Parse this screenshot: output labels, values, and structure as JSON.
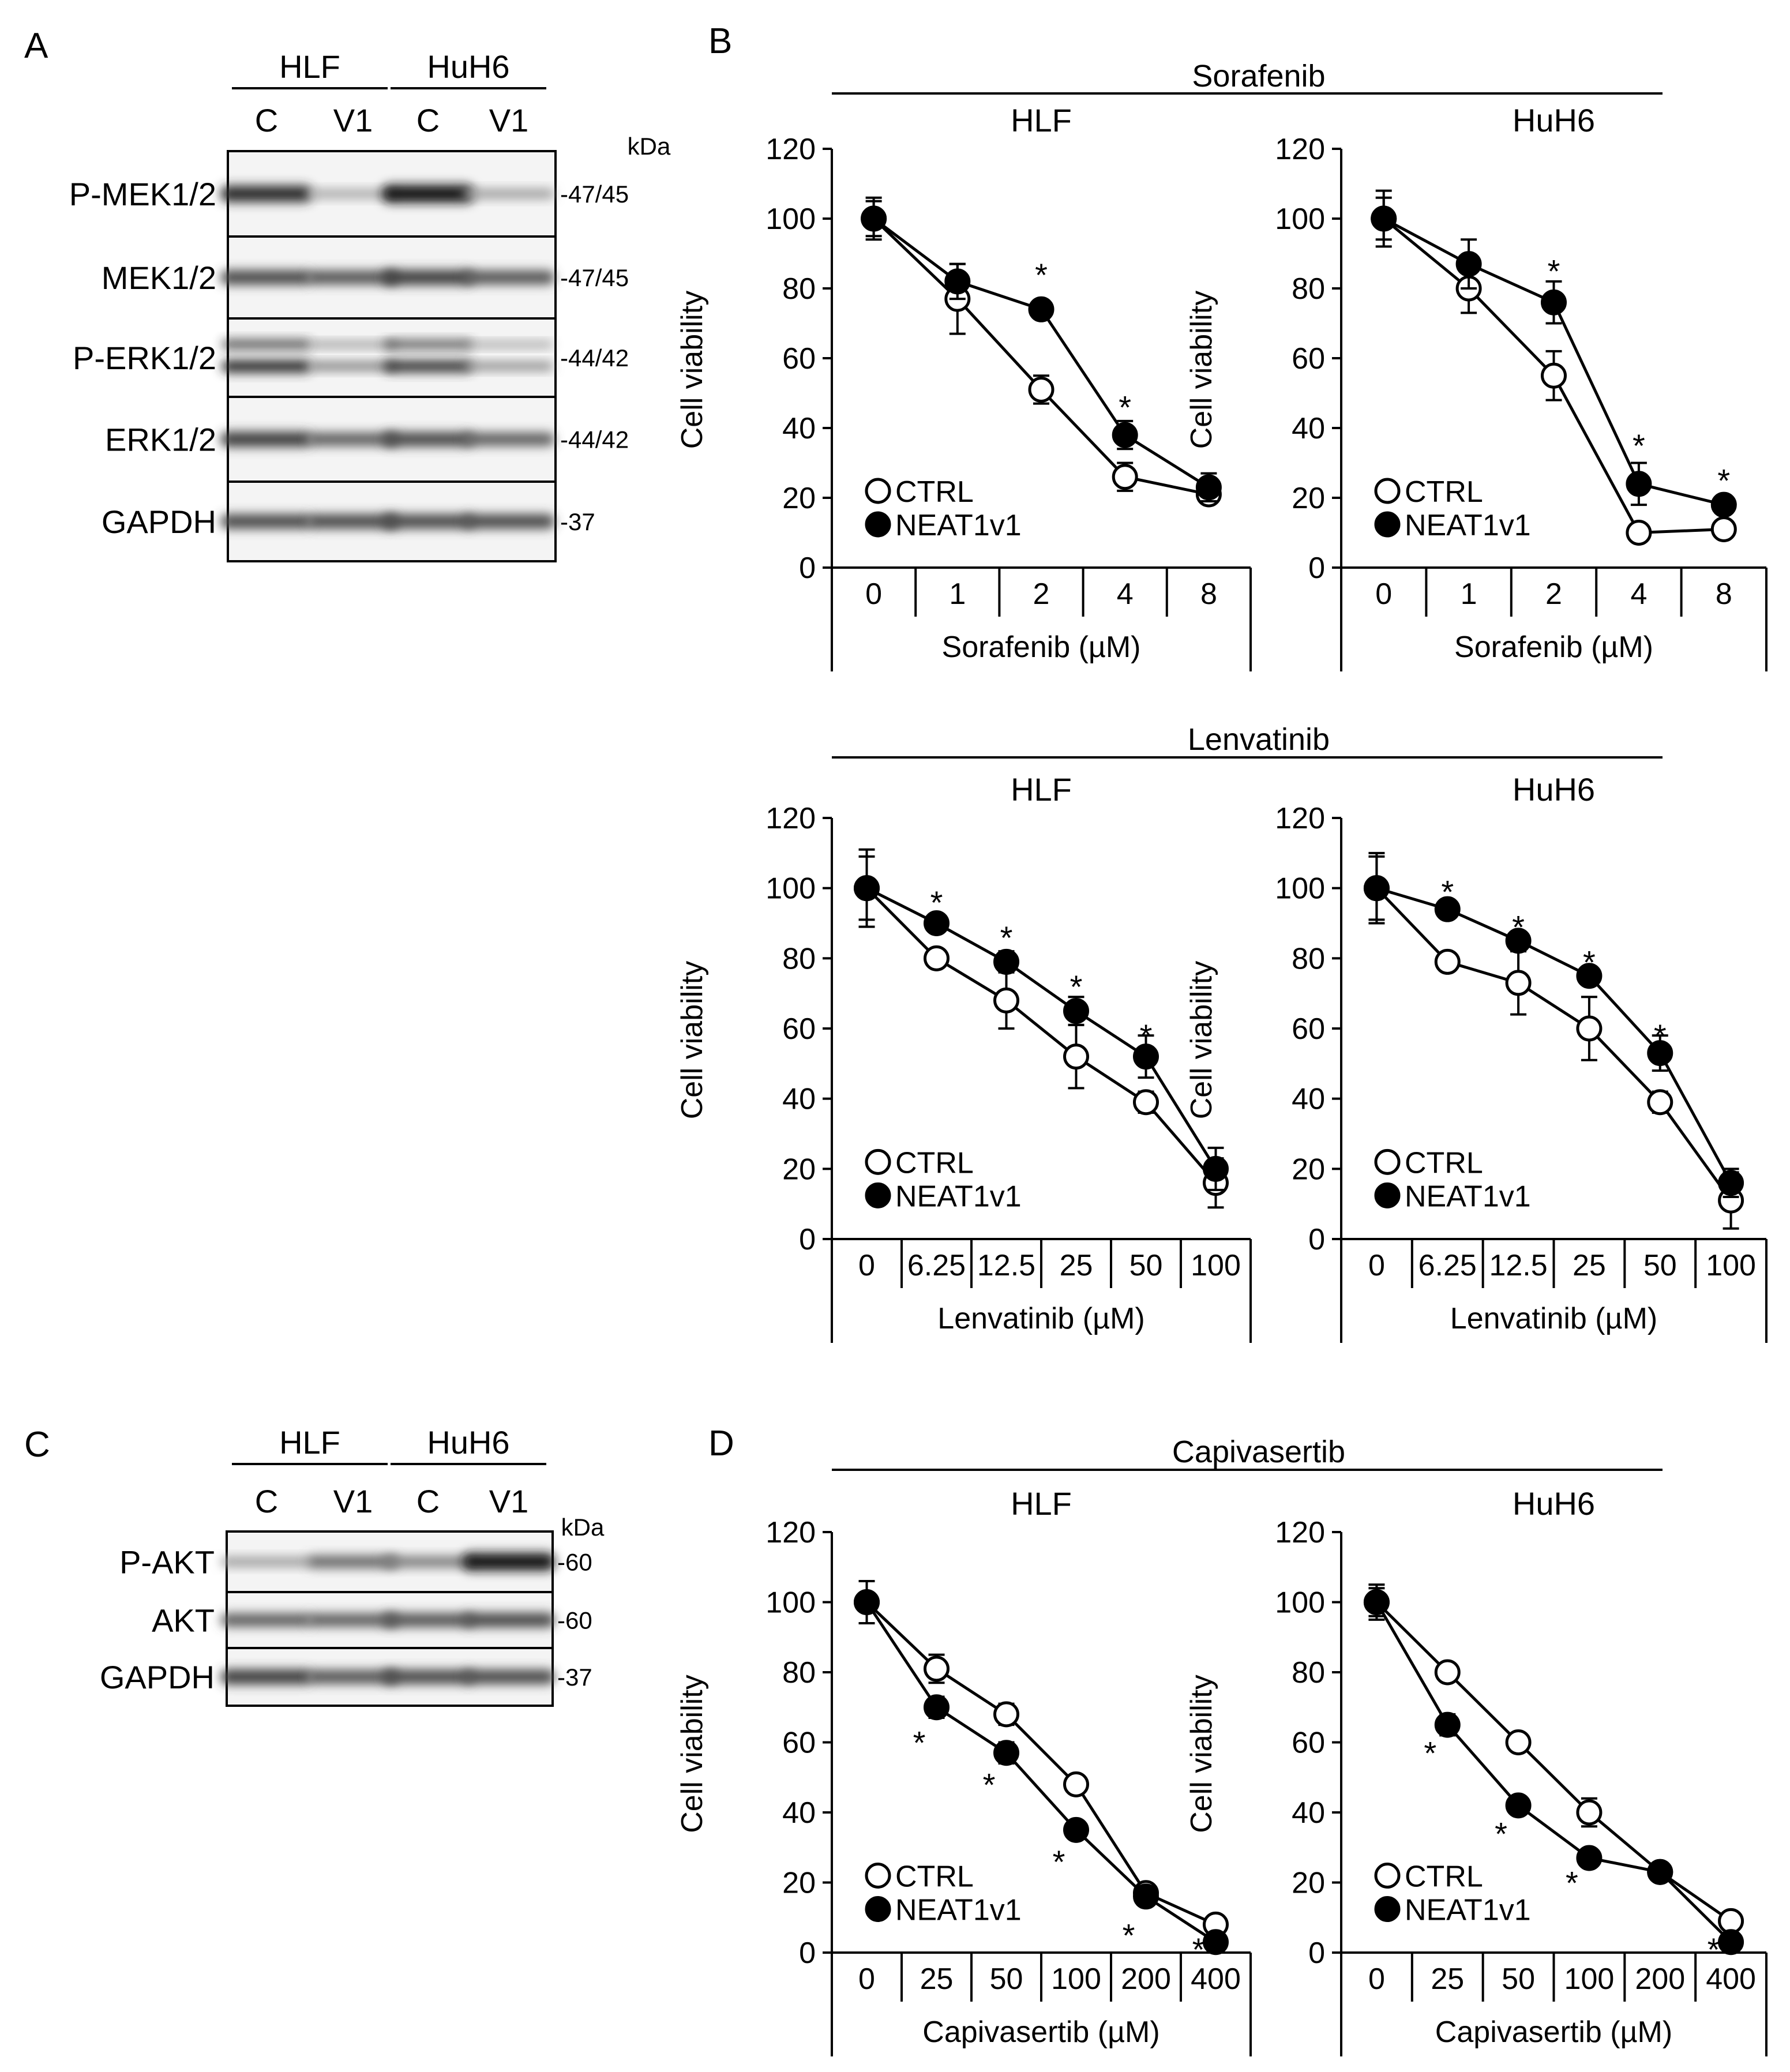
{
  "panels": {
    "A": {
      "letter": "A",
      "groups": [
        "HLF",
        "HuH6"
      ],
      "lanes": [
        "C",
        "V1",
        "C",
        "V1"
      ],
      "kda_label": "kDa",
      "blots": [
        {
          "name": "P-MEK1/2",
          "kda": "47/45",
          "bands": [
            0.85,
            0.25,
            0.95,
            0.3
          ],
          "double": false
        },
        {
          "name": "MEK1/2",
          "kda": "47/45",
          "bands": [
            0.7,
            0.65,
            0.75,
            0.65
          ],
          "double": false
        },
        {
          "name": "P-ERK1/2",
          "kda": "44/42",
          "bands": [
            0.85,
            0.45,
            0.8,
            0.4
          ],
          "double": true
        },
        {
          "name": "ERK1/2",
          "kda": "44/42",
          "bands": [
            0.75,
            0.6,
            0.7,
            0.6
          ],
          "double": false
        },
        {
          "name": "GAPDH",
          "kda": "37",
          "bands": [
            0.7,
            0.7,
            0.7,
            0.7
          ],
          "double": false
        }
      ]
    },
    "B": {
      "letter": "B"
    },
    "C": {
      "letter": "C",
      "groups": [
        "HLF",
        "HuH6"
      ],
      "lanes": [
        "C",
        "V1",
        "C",
        "V1"
      ],
      "kda_label": "kDa",
      "blots": [
        {
          "name": "P-AKT",
          "kda": "60",
          "bands": [
            0.3,
            0.55,
            0.45,
            0.95
          ],
          "double": false
        },
        {
          "name": "AKT",
          "kda": "60",
          "bands": [
            0.6,
            0.6,
            0.65,
            0.7
          ],
          "double": false
        },
        {
          "name": "GAPDH",
          "kda": "37",
          "bands": [
            0.75,
            0.65,
            0.7,
            0.7
          ],
          "double": false
        }
      ]
    },
    "D": {
      "letter": "D"
    }
  },
  "drug_groups": [
    "Sorafenib",
    "Lenvatinib",
    "Capivasertib"
  ],
  "chart_data": [
    {
      "type": "line",
      "drug": "Sorafenib",
      "title": "HLF",
      "ylabel": "Cell viability",
      "xlabel": "Sorafenib (µM)",
      "categories": [
        "0",
        "1",
        "2",
        "4",
        "8"
      ],
      "ylim": [
        0,
        120
      ],
      "yticks": [
        0,
        20,
        40,
        60,
        80,
        100,
        120
      ],
      "legend": [
        "CTRL",
        "NEAT1v1"
      ],
      "legend_position": "bottom-left",
      "series": [
        {
          "name": "CTRL",
          "values": [
            100,
            77,
            51,
            26,
            21
          ],
          "errors": [
            5,
            10,
            4,
            4,
            2
          ]
        },
        {
          "name": "NEAT1v1",
          "values": [
            100,
            82,
            74,
            38,
            23
          ],
          "errors": [
            6,
            5,
            2,
            4,
            4
          ]
        }
      ],
      "significance": [
        {
          "index": 2,
          "label": "*",
          "y": 85
        },
        {
          "index": 3,
          "label": "*",
          "y": 47
        }
      ]
    },
    {
      "type": "line",
      "drug": "Sorafenib",
      "title": "HuH6",
      "ylabel": "Cell viability",
      "xlabel": "Sorafenib (µM)",
      "categories": [
        "0",
        "1",
        "2",
        "4",
        "8"
      ],
      "ylim": [
        0,
        120
      ],
      "yticks": [
        0,
        20,
        40,
        60,
        80,
        100,
        120
      ],
      "legend": [
        "CTRL",
        "NEAT1v1"
      ],
      "legend_position": "bottom-left",
      "series": [
        {
          "name": "CTRL",
          "values": [
            100,
            80,
            55,
            10,
            11
          ],
          "errors": [
            8,
            7,
            7,
            1,
            1
          ]
        },
        {
          "name": "NEAT1v1",
          "values": [
            100,
            87,
            76,
            24,
            18
          ],
          "errors": [
            6,
            7,
            6,
            6,
            2
          ]
        }
      ],
      "significance": [
        {
          "index": 2,
          "label": "*",
          "y": 86
        },
        {
          "index": 3,
          "label": "*",
          "y": 36
        },
        {
          "index": 4,
          "label": "*",
          "y": 26
        }
      ]
    },
    {
      "type": "line",
      "drug": "Lenvatinib",
      "title": "HLF",
      "ylabel": "Cell viability",
      "xlabel": "Lenvatinib (µM)",
      "categories": [
        "0",
        "6.25",
        "12.5",
        "25",
        "50",
        "100"
      ],
      "ylim": [
        0,
        120
      ],
      "yticks": [
        0,
        20,
        40,
        60,
        80,
        100,
        120
      ],
      "legend": [
        "CTRL",
        "NEAT1v1"
      ],
      "legend_position": "bottom-left",
      "series": [
        {
          "name": "CTRL",
          "values": [
            100,
            80,
            68,
            52,
            39,
            16
          ],
          "errors": [
            11,
            2,
            8,
            9,
            3,
            7
          ]
        },
        {
          "name": "NEAT1v1",
          "values": [
            100,
            90,
            79,
            65,
            52,
            20
          ],
          "errors": [
            9,
            2,
            3,
            4,
            6,
            6
          ]
        }
      ],
      "significance": [
        {
          "index": 1,
          "label": "*",
          "y": 97
        },
        {
          "index": 2,
          "label": "*",
          "y": 87
        },
        {
          "index": 3,
          "label": "*",
          "y": 73
        },
        {
          "index": 4,
          "label": "*",
          "y": 59
        }
      ]
    },
    {
      "type": "line",
      "drug": "Lenvatinib",
      "title": "HuH6",
      "ylabel": "Cell viability",
      "xlabel": "Lenvatinib (µM)",
      "categories": [
        "0",
        "6.25",
        "12.5",
        "25",
        "50",
        "100"
      ],
      "ylim": [
        0,
        120
      ],
      "yticks": [
        0,
        20,
        40,
        60,
        80,
        100,
        120
      ],
      "legend": [
        "CTRL",
        "NEAT1v1"
      ],
      "legend_position": "bottom-left",
      "series": [
        {
          "name": "CTRL",
          "values": [
            100,
            79,
            73,
            60,
            39,
            11
          ],
          "errors": [
            10,
            2,
            9,
            9,
            3,
            8
          ]
        },
        {
          "name": "NEAT1v1",
          "values": [
            100,
            94,
            85,
            75,
            53,
            16
          ],
          "errors": [
            9,
            2,
            2,
            2,
            5,
            4
          ]
        }
      ],
      "significance": [
        {
          "index": 1,
          "label": "*",
          "y": 100
        },
        {
          "index": 2,
          "label": "*",
          "y": 90
        },
        {
          "index": 3,
          "label": "*",
          "y": 80
        },
        {
          "index": 4,
          "label": "*",
          "y": 59
        }
      ]
    },
    {
      "type": "line",
      "drug": "Capivasertib",
      "title": "HLF",
      "ylabel": "Cell viability",
      "xlabel": "Capivasertib (µM)",
      "categories": [
        "0",
        "25",
        "50",
        "100",
        "200",
        "400"
      ],
      "ylim": [
        0,
        120
      ],
      "yticks": [
        0,
        20,
        40,
        60,
        80,
        100,
        120
      ],
      "legend": [
        "CTRL",
        "NEAT1v1"
      ],
      "legend_position": "bottom-left",
      "series": [
        {
          "name": "CTRL",
          "values": [
            100,
            81,
            68,
            48,
            17,
            8
          ],
          "errors": [
            6,
            4,
            3,
            2,
            2,
            1
          ]
        },
        {
          "name": "NEAT1v1",
          "values": [
            100,
            70,
            57,
            35,
            16,
            3
          ],
          "errors": [
            6,
            3,
            3,
            2,
            2,
            1
          ]
        }
      ],
      "significance": [
        {
          "index": 1,
          "label": "*",
          "y": 61
        },
        {
          "index": 2,
          "label": "*",
          "y": 49
        },
        {
          "index": 3,
          "label": "*",
          "y": 27
        },
        {
          "index": 4,
          "label": "*",
          "y": 6
        },
        {
          "index": 5,
          "label": "*",
          "y": 2
        }
      ]
    },
    {
      "type": "line",
      "drug": "Capivasertib",
      "title": "HuH6",
      "ylabel": "Cell viability",
      "xlabel": "Capivasertib (µM)",
      "categories": [
        "0",
        "25",
        "50",
        "100",
        "200",
        "400"
      ],
      "ylim": [
        0,
        120
      ],
      "yticks": [
        0,
        20,
        40,
        60,
        80,
        100,
        120
      ],
      "legend": [
        "CTRL",
        "NEAT1v1"
      ],
      "legend_position": "bottom-left",
      "series": [
        {
          "name": "CTRL",
          "values": [
            100,
            80,
            60,
            40,
            23,
            9
          ],
          "errors": [
            5,
            1,
            1,
            4,
            1,
            1
          ]
        },
        {
          "name": "NEAT1v1",
          "values": [
            100,
            65,
            42,
            27,
            23,
            3
          ],
          "errors": [
            4,
            3,
            2,
            2,
            1,
            1
          ]
        }
      ],
      "significance": [
        {
          "index": 1,
          "label": "*",
          "y": 58
        },
        {
          "index": 2,
          "label": "*",
          "y": 35
        },
        {
          "index": 3,
          "label": "*",
          "y": 21
        },
        {
          "index": 5,
          "label": "*",
          "y": 2
        }
      ]
    }
  ]
}
